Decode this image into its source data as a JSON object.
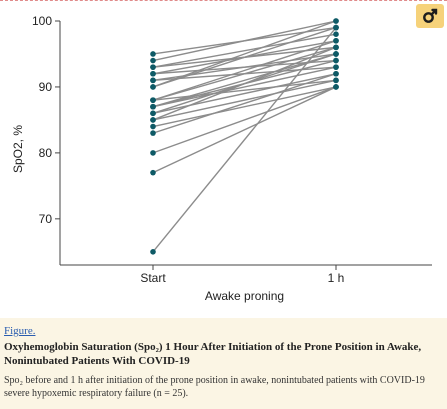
{
  "figure_link": "Figure.",
  "caption_title": "Oxyhemoglobin Saturation (Spo₂) 1 Hour After Initiation of the Prone Position in Awake, Nonintubated Patients With COVID-19",
  "caption_text": "Spo₂ before and 1 h after initiation of the prone position in awake, nonintubated patients with COVID-19 severe hypoxemic respiratory failure (n = 25).",
  "link_icon": "external-link-icon",
  "colors": {
    "line": "#8c8c8c",
    "marker": "#0e5a66",
    "caption_bg": "#fbf5e4",
    "link_btn": "#f6d27a"
  },
  "chart_data": {
    "type": "line",
    "title": "",
    "xlabel": "Awake proning",
    "ylabel": "SpO2, %",
    "categories": [
      "Start",
      "1 h"
    ],
    "ylim": [
      63,
      100
    ],
    "yticks": [
      70,
      80,
      90,
      100
    ],
    "grid": false,
    "pairs": [
      [
        95,
        99
      ],
      [
        94,
        100
      ],
      [
        93,
        98
      ],
      [
        93,
        96
      ],
      [
        92,
        97
      ],
      [
        91,
        95
      ],
      [
        90,
        100
      ],
      [
        90,
        99
      ],
      [
        88,
        97
      ],
      [
        88,
        96
      ],
      [
        87,
        95
      ],
      [
        87,
        93
      ],
      [
        87,
        94
      ],
      [
        86,
        95
      ],
      [
        86,
        92
      ],
      [
        85,
        91
      ],
      [
        85,
        96
      ],
      [
        84,
        90
      ],
      [
        83,
        92
      ],
      [
        92,
        94
      ],
      [
        91,
        93
      ],
      [
        88,
        91
      ],
      [
        80,
        90
      ],
      [
        77,
        90
      ],
      [
        65,
        99
      ]
    ]
  }
}
